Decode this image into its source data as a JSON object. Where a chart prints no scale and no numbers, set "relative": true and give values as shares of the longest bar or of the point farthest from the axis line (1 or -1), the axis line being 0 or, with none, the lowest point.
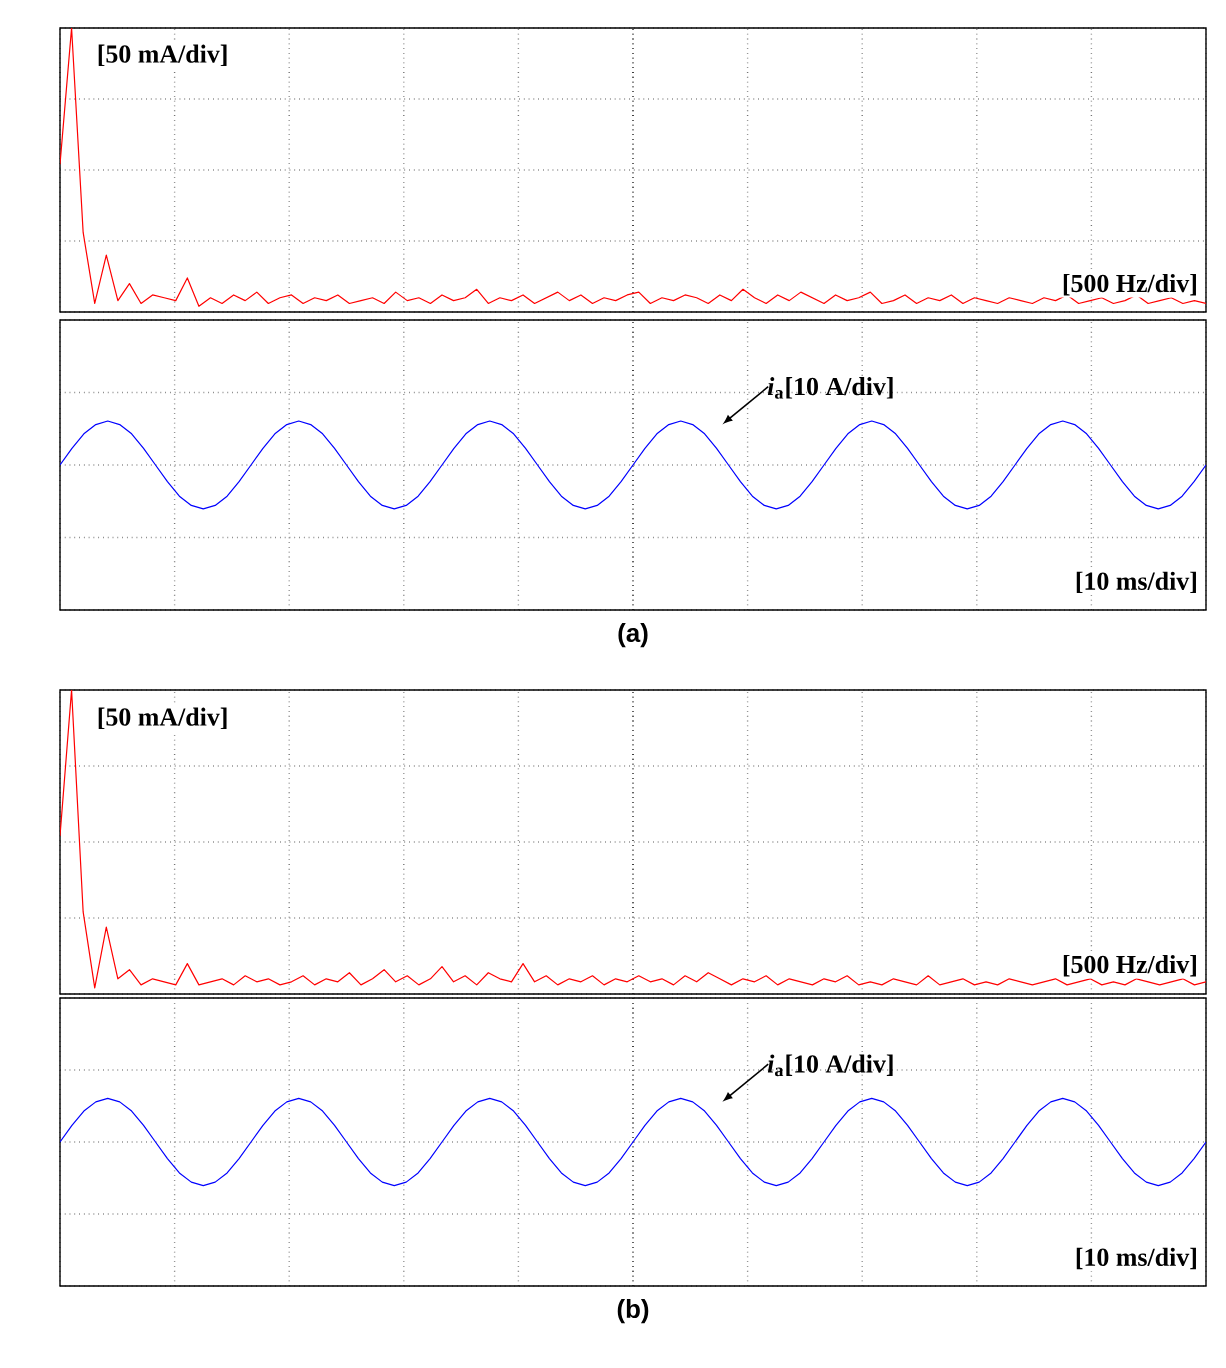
{
  "chart_data": [
    {
      "type": "line",
      "relative": true,
      "grid": true,
      "categories": [
        null,
        null,
        null,
        null,
        null,
        null,
        null,
        null,
        null,
        null,
        null,
        null,
        null,
        null,
        null,
        null,
        null,
        null,
        null,
        null,
        null,
        null,
        null,
        null,
        null,
        null,
        null,
        null,
        null,
        null,
        null,
        null,
        null,
        null,
        null,
        null,
        null,
        null,
        null,
        null,
        null,
        null,
        null,
        null,
        null,
        null,
        null,
        null,
        null,
        null,
        null,
        null,
        null,
        null,
        null,
        null,
        null,
        null,
        null,
        null,
        null,
        null,
        null,
        null,
        null,
        null,
        null,
        null,
        null,
        null,
        null,
        null,
        null,
        null,
        null,
        null,
        null,
        null,
        null,
        null,
        null,
        null,
        null,
        null,
        null,
        null,
        null,
        null,
        null,
        null,
        null,
        null,
        null,
        null,
        null,
        null,
        null,
        null,
        null,
        null
      ],
      "series": [
        {
          "color": "#ff0000",
          "values": [
            0.52,
            1,
            0.28,
            0.03,
            0.2,
            0.04,
            0.1,
            0.03,
            0.06,
            0.05,
            0.04,
            0.12,
            0.02,
            0.05,
            0.03,
            0.06,
            0.04,
            0.07,
            0.03,
            0.05,
            0.06,
            0.03,
            0.05,
            0.04,
            0.06,
            0.03,
            0.04,
            0.05,
            0.03,
            0.07,
            0.04,
            0.05,
            0.03,
            0.06,
            0.04,
            0.05,
            0.08,
            0.03,
            0.05,
            0.04,
            0.06,
            0.03,
            0.05,
            0.07,
            0.04,
            0.06,
            0.03,
            0.05,
            0.04,
            0.06,
            0.07,
            0.03,
            0.05,
            0.04,
            0.06,
            0.05,
            0.03,
            0.06,
            0.04,
            0.08,
            0.05,
            0.03,
            0.06,
            0.04,
            0.07,
            0.05,
            0.03,
            0.06,
            0.04,
            0.05,
            0.07,
            0.03,
            0.04,
            0.06,
            0.03,
            0.05,
            0.04,
            0.06,
            0.03,
            0.05,
            0.04,
            0.03,
            0.05,
            0.04,
            0.03,
            0.05,
            0.04,
            0.06,
            0.03,
            0.04,
            0.05,
            0.03,
            0.04,
            0.06,
            0.03,
            0.04,
            0.05,
            0.03,
            0.04,
            0.03
          ]
        }
      ],
      "annotations": [
        "[50 mA/div]",
        "[500 Hz/div]"
      ]
    },
    {
      "type": "line",
      "relative": true,
      "grid": true,
      "title": "(a)",
      "categories": [
        null,
        null,
        null,
        null,
        null,
        null,
        null,
        null,
        null,
        null,
        null,
        null,
        null,
        null,
        null,
        null,
        null,
        null,
        null,
        null,
        null,
        null,
        null,
        null,
        null,
        null,
        null,
        null,
        null,
        null,
        null,
        null,
        null,
        null,
        null,
        null,
        null,
        null,
        null,
        null,
        null,
        null,
        null,
        null,
        null,
        null,
        null,
        null,
        null,
        null,
        null,
        null,
        null,
        null,
        null,
        null,
        null,
        null,
        null,
        null,
        null,
        null,
        null,
        null,
        null,
        null,
        null,
        null,
        null,
        null,
        null,
        null,
        null,
        null,
        null,
        null,
        null,
        null,
        null,
        null,
        null,
        null,
        null,
        null,
        null,
        null,
        null,
        null,
        null,
        null,
        null,
        null,
        null,
        null,
        null,
        null,
        null
      ],
      "series": [
        {
          "color": "#0000ff",
          "values": [
            0,
            0.38,
            0.71,
            0.92,
            1,
            0.92,
            0.71,
            0.38,
            0,
            -0.38,
            -0.71,
            -0.92,
            -1,
            -0.92,
            -0.71,
            -0.38,
            0,
            0.38,
            0.71,
            0.92,
            1,
            0.92,
            0.71,
            0.38,
            0,
            -0.38,
            -0.71,
            -0.92,
            -1,
            -0.92,
            -0.71,
            -0.38,
            0,
            0.38,
            0.71,
            0.92,
            1,
            0.92,
            0.71,
            0.38,
            0,
            -0.38,
            -0.71,
            -0.92,
            -1,
            -0.92,
            -0.71,
            -0.38,
            0,
            0.38,
            0.71,
            0.92,
            1,
            0.92,
            0.71,
            0.38,
            0,
            -0.38,
            -0.71,
            -0.92,
            -1,
            -0.92,
            -0.71,
            -0.38,
            0,
            0.38,
            0.71,
            0.92,
            1,
            0.92,
            0.71,
            0.38,
            0,
            -0.38,
            -0.71,
            -0.92,
            -1,
            -0.92,
            -0.71,
            -0.38,
            0,
            0.38,
            0.71,
            0.92,
            1,
            0.92,
            0.71,
            0.38,
            0,
            -0.38,
            -0.71,
            -0.92,
            -1,
            -0.92,
            -0.71,
            -0.38,
            0
          ]
        }
      ],
      "annotations": [
        "*i*$_{a}$[10 A/div]",
        "[10 ms/div]"
      ]
    },
    {
      "type": "line",
      "relative": true,
      "grid": true,
      "categories": [
        null,
        null,
        null,
        null,
        null,
        null,
        null,
        null,
        null,
        null,
        null,
        null,
        null,
        null,
        null,
        null,
        null,
        null,
        null,
        null,
        null,
        null,
        null,
        null,
        null,
        null,
        null,
        null,
        null,
        null,
        null,
        null,
        null,
        null,
        null,
        null,
        null,
        null,
        null,
        null,
        null,
        null,
        null,
        null,
        null,
        null,
        null,
        null,
        null,
        null,
        null,
        null,
        null,
        null,
        null,
        null,
        null,
        null,
        null,
        null,
        null,
        null,
        null,
        null,
        null,
        null,
        null,
        null,
        null,
        null,
        null,
        null,
        null,
        null,
        null,
        null,
        null,
        null,
        null,
        null,
        null,
        null,
        null,
        null,
        null,
        null,
        null,
        null,
        null,
        null,
        null,
        null,
        null,
        null,
        null,
        null,
        null,
        null,
        null,
        null
      ],
      "series": [
        {
          "color": "#ff0000",
          "values": [
            0.52,
            1,
            0.27,
            0.02,
            0.22,
            0.05,
            0.08,
            0.03,
            0.05,
            0.04,
            0.03,
            0.1,
            0.03,
            0.04,
            0.05,
            0.03,
            0.06,
            0.04,
            0.05,
            0.03,
            0.04,
            0.06,
            0.03,
            0.05,
            0.04,
            0.07,
            0.03,
            0.05,
            0.08,
            0.04,
            0.06,
            0.03,
            0.05,
            0.09,
            0.04,
            0.06,
            0.03,
            0.07,
            0.05,
            0.04,
            0.1,
            0.04,
            0.06,
            0.03,
            0.05,
            0.04,
            0.06,
            0.03,
            0.05,
            0.04,
            0.06,
            0.04,
            0.05,
            0.03,
            0.06,
            0.04,
            0.07,
            0.05,
            0.03,
            0.05,
            0.04,
            0.06,
            0.03,
            0.05,
            0.04,
            0.03,
            0.05,
            0.04,
            0.06,
            0.03,
            0.04,
            0.03,
            0.05,
            0.04,
            0.03,
            0.06,
            0.03,
            0.04,
            0.05,
            0.03,
            0.04,
            0.03,
            0.05,
            0.04,
            0.03,
            0.04,
            0.05,
            0.03,
            0.04,
            0.05,
            0.03,
            0.04,
            0.03,
            0.05,
            0.04,
            0.03,
            0.04,
            0.05,
            0.03,
            0.04
          ]
        }
      ],
      "annotations": [
        "[50 mA/div]",
        "[500 Hz/div]"
      ]
    },
    {
      "type": "line",
      "relative": true,
      "grid": true,
      "title": "(b)",
      "categories": [
        null,
        null,
        null,
        null,
        null,
        null,
        null,
        null,
        null,
        null,
        null,
        null,
        null,
        null,
        null,
        null,
        null,
        null,
        null,
        null,
        null,
        null,
        null,
        null,
        null,
        null,
        null,
        null,
        null,
        null,
        null,
        null,
        null,
        null,
        null,
        null,
        null,
        null,
        null,
        null,
        null,
        null,
        null,
        null,
        null,
        null,
        null,
        null,
        null,
        null,
        null,
        null,
        null,
        null,
        null,
        null,
        null,
        null,
        null,
        null,
        null,
        null,
        null,
        null,
        null,
        null,
        null,
        null,
        null,
        null,
        null,
        null,
        null,
        null,
        null,
        null,
        null,
        null,
        null,
        null,
        null,
        null,
        null,
        null,
        null,
        null,
        null,
        null,
        null,
        null,
        null,
        null,
        null,
        null,
        null,
        null,
        null
      ],
      "series": [
        {
          "color": "#0000ff",
          "values": [
            0,
            0.38,
            0.71,
            0.92,
            1,
            0.92,
            0.71,
            0.38,
            0,
            -0.38,
            -0.71,
            -0.92,
            -1,
            -0.92,
            -0.71,
            -0.38,
            0,
            0.38,
            0.71,
            0.92,
            1,
            0.92,
            0.71,
            0.38,
            0,
            -0.38,
            -0.71,
            -0.92,
            -1,
            -0.92,
            -0.71,
            -0.38,
            0,
            0.38,
            0.71,
            0.92,
            1,
            0.92,
            0.71,
            0.38,
            0,
            -0.38,
            -0.71,
            -0.92,
            -1,
            -0.92,
            -0.71,
            -0.38,
            0,
            0.38,
            0.71,
            0.92,
            1,
            0.92,
            0.71,
            0.38,
            0,
            -0.38,
            -0.71,
            -0.92,
            -1,
            -0.92,
            -0.71,
            -0.38,
            0,
            0.38,
            0.71,
            0.92,
            1,
            0.92,
            0.71,
            0.38,
            0,
            -0.38,
            -0.71,
            -0.92,
            -1,
            -0.92,
            -0.71,
            -0.38,
            0,
            0.38,
            0.71,
            0.92,
            1,
            0.92,
            0.71,
            0.38,
            0,
            -0.38,
            -0.71,
            -0.92,
            -1,
            -0.92,
            -0.71,
            -0.38,
            0
          ]
        }
      ],
      "annotations": [
        "*i*$_{a}$[10 A/div]",
        "[10 ms/div]"
      ]
    }
  ]
}
